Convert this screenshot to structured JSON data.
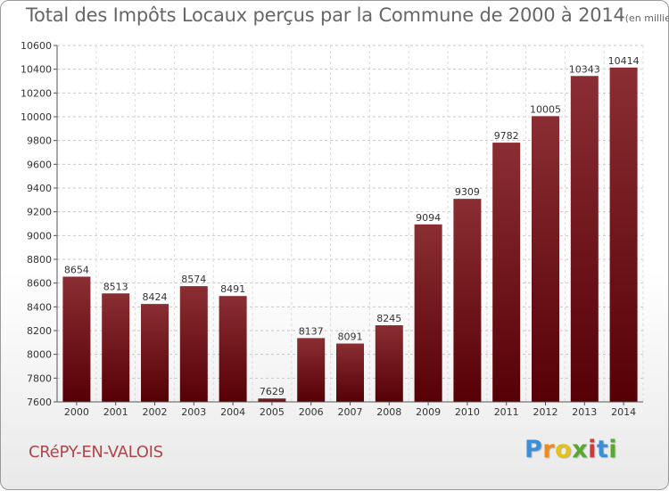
{
  "title": {
    "main": "Total des Impôts Locaux perçus par la Commune de 2000 à 2014",
    "unit": "(en milliers d'€)"
  },
  "commune": "CRéPY-EN-VALOIS",
  "logo": {
    "letters": [
      "P",
      "r",
      "o",
      "x",
      "i",
      "t",
      "i"
    ],
    "colors": [
      "#3b8ed8",
      "#f08a1c",
      "#e3c21a",
      "#5aa832",
      "#d23a3a",
      "#3b8ed8",
      "#5aa832"
    ]
  },
  "chart_data": {
    "type": "bar",
    "categories": [
      "2000",
      "2001",
      "2002",
      "2003",
      "2004",
      "2005",
      "2006",
      "2007",
      "2008",
      "2009",
      "2010",
      "2011",
      "2012",
      "2013",
      "2014"
    ],
    "values": [
      8654,
      8513,
      8424,
      8574,
      8491,
      7629,
      8137,
      8091,
      8245,
      9094,
      9309,
      9782,
      10005,
      10343,
      10414
    ],
    "value_labels": [
      "8654",
      "8513",
      "8424",
      "8574",
      "8491",
      "7629",
      "8137",
      "8091",
      "8245",
      "9094",
      "9309",
      "9782",
      "10005",
      "10343",
      "10414"
    ],
    "ylim": [
      7600,
      10600
    ],
    "yticks": [
      7600,
      7800,
      8000,
      8200,
      8400,
      8600,
      8800,
      9000,
      9200,
      9400,
      9600,
      9800,
      10000,
      10200,
      10400,
      10600
    ],
    "ytick_labels": [
      "7600",
      "7800",
      "8000",
      "8200",
      "8400",
      "8600",
      "8800",
      "9000",
      "9200",
      "9400",
      "9600",
      "9800",
      "10000",
      "10200",
      "10400",
      "10600"
    ],
    "grid": true,
    "bar_color": "#7a1f24"
  }
}
